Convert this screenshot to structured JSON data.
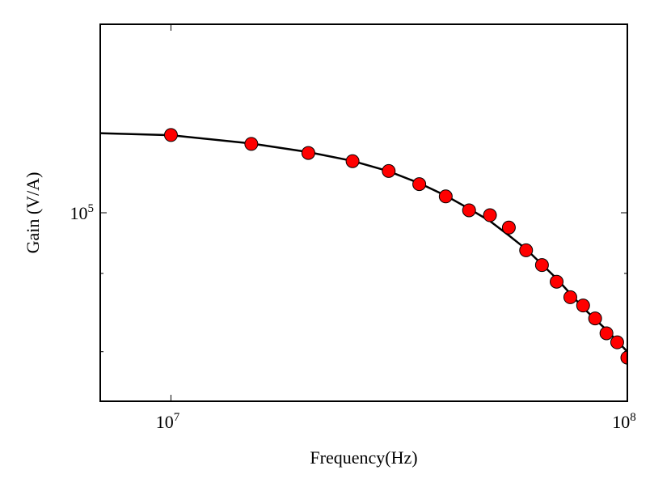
{
  "chart_data": {
    "type": "scatter",
    "x_label": "Frequency(Hz)",
    "y_label": "Gain (V/A)",
    "log_x": true,
    "log_y": true,
    "xlim": [
      7000000,
      100000000
    ],
    "ylim": [
      50000,
      200000
    ],
    "xticks": [
      {
        "value": 10000000,
        "label": "10",
        "exponent": "7"
      },
      {
        "value": 100000000,
        "label": "10",
        "exponent": "8"
      }
    ],
    "yticks": [
      {
        "value": 100000,
        "label": "10",
        "exponent": "5"
      }
    ],
    "yminorticks": [
      60000,
      80000
    ],
    "series": [
      {
        "mode": "line",
        "color": "#000000",
        "x": [
          7000000,
          10000000,
          15000000,
          20000000,
          25000000,
          30000000,
          35000000,
          40000000,
          45000000,
          50000000,
          55000000,
          60000000,
          70000000,
          80000000,
          90000000,
          100000000
        ],
        "values": [
          134000,
          133000,
          129000,
          125000,
          121000,
          116500,
          111500,
          106500,
          101500,
          97000,
          92000,
          87500,
          78500,
          70500,
          65000,
          60000
        ]
      },
      {
        "mode": "marker",
        "color": "#ff0000",
        "x": [
          10000000,
          15000000,
          20000000,
          25000000,
          30000000,
          35000000,
          40000000,
          45000000,
          50000000,
          55000000,
          60000000,
          65000000,
          70000000,
          75000000,
          80000000,
          85000000,
          90000000,
          95000000,
          100000000
        ],
        "values": [
          133100,
          128800,
          124600,
          120900,
          116600,
          111100,
          106200,
          100900,
          99100,
          94700,
          87100,
          82500,
          77600,
          73300,
          71100,
          67800,
          64200,
          62100,
          58700
        ]
      }
    ]
  }
}
